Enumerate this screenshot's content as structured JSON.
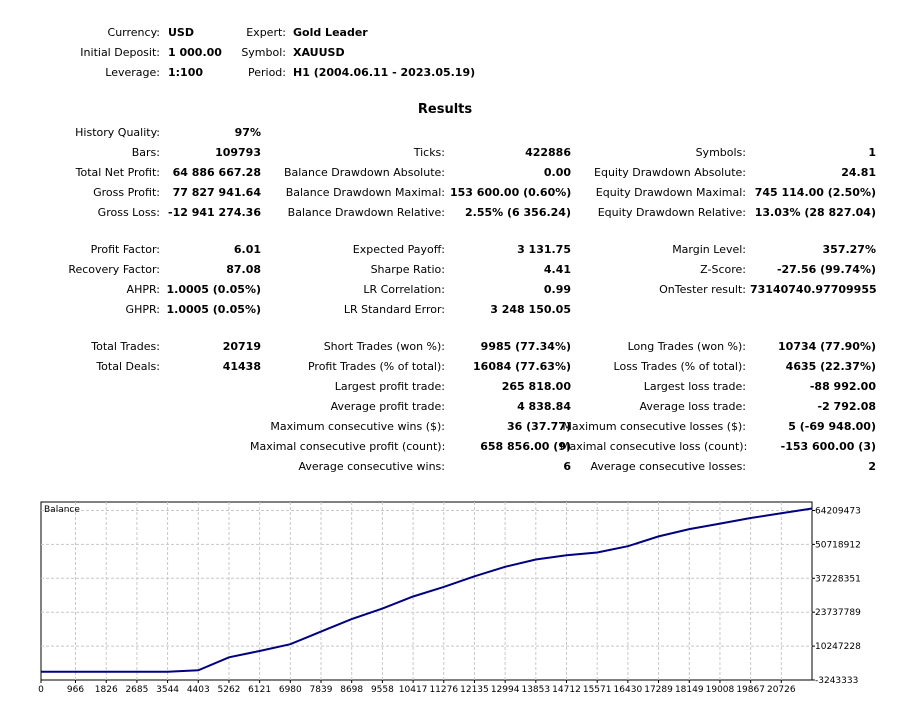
{
  "header": [
    {
      "name": "currency",
      "label": "Currency:",
      "value": "USD"
    },
    {
      "name": "initial-deposit",
      "label": "Initial Deposit:",
      "value": "1 000.00"
    },
    {
      "name": "leverage",
      "label": "Leverage:",
      "value": "1:100"
    },
    {
      "name": "expert",
      "label": "Expert:",
      "value": "Gold Leader"
    },
    {
      "name": "symbol",
      "label": "Symbol:",
      "value": "XAUUSD"
    },
    {
      "name": "period",
      "label": "Period:",
      "value": "H1 (2004.06.11 - 2023.05.19)"
    }
  ],
  "results_title": "Results",
  "col1": [
    {
      "name": "history-quality",
      "label": "History Quality:",
      "value": "97%"
    },
    {
      "name": "bars",
      "label": "Bars:",
      "value": "109793"
    },
    {
      "name": "total-net-profit",
      "label": "Total Net Profit:",
      "value": "64 886 667.28"
    },
    {
      "name": "gross-profit",
      "label": "Gross Profit:",
      "value": "77 827 941.64"
    },
    {
      "name": "gross-loss",
      "label": "Gross Loss:",
      "value": "-12 941 274.36"
    },
    {
      "name": "profit-factor",
      "label": "Profit Factor:",
      "value": "6.01"
    },
    {
      "name": "recovery-factor",
      "label": "Recovery Factor:",
      "value": "87.08"
    },
    {
      "name": "ahpr",
      "label": "AHPR:",
      "value": "1.0005 (0.05%)"
    },
    {
      "name": "ghpr",
      "label": "GHPR:",
      "value": "1.0005 (0.05%)"
    },
    {
      "name": "total-trades",
      "label": "Total Trades:",
      "value": "20719"
    },
    {
      "name": "total-deals",
      "label": "Total Deals:",
      "value": "41438"
    }
  ],
  "col2": [
    {
      "name": "ticks",
      "label": "Ticks:",
      "value": "422886"
    },
    {
      "name": "balance-drawdown-absolute",
      "label": "Balance Drawdown Absolute:",
      "value": "0.00"
    },
    {
      "name": "balance-drawdown-maximal",
      "label": "Balance Drawdown Maximal:",
      "value": "153 600.00 (0.60%)"
    },
    {
      "name": "balance-drawdown-relative",
      "label": "Balance Drawdown Relative:",
      "value": "2.55% (6 356.24)"
    },
    {
      "name": "expected-payoff",
      "label": "Expected Payoff:",
      "value": "3 131.75"
    },
    {
      "name": "sharpe-ratio",
      "label": "Sharpe Ratio:",
      "value": "4.41"
    },
    {
      "name": "lr-correlation",
      "label": "LR Correlation:",
      "value": "0.99"
    },
    {
      "name": "lr-standard-error",
      "label": "LR Standard Error:",
      "value": "3 248 150.05"
    },
    {
      "name": "short-trades",
      "label": "Short Trades (won %):",
      "value": "9985 (77.34%)"
    },
    {
      "name": "profit-trades",
      "label": "Profit Trades (% of total):",
      "value": "16084 (77.63%)"
    },
    {
      "name": "largest-profit-trade",
      "label": "Largest profit trade:",
      "value": "265 818.00"
    },
    {
      "name": "average-profit-trade",
      "label": "Average profit trade:",
      "value": "4 838.84"
    },
    {
      "name": "max-consecutive-wins",
      "label": "Maximum consecutive wins ($):",
      "value": "36 (37.77)"
    },
    {
      "name": "maximal-consecutive-profit",
      "label": "Maximal consecutive profit (count):",
      "value": "658 856.00 (9)"
    },
    {
      "name": "average-consecutive-wins",
      "label": "Average consecutive wins:",
      "value": "6"
    }
  ],
  "col3": [
    {
      "name": "symbols",
      "label": "Symbols:",
      "value": "1"
    },
    {
      "name": "equity-drawdown-absolute",
      "label": "Equity Drawdown Absolute:",
      "value": "24.81"
    },
    {
      "name": "equity-drawdown-maximal",
      "label": "Equity Drawdown Maximal:",
      "value": "745 114.00 (2.50%)"
    },
    {
      "name": "equity-drawdown-relative",
      "label": "Equity Drawdown Relative:",
      "value": "13.03% (28 827.04)"
    },
    {
      "name": "margin-level",
      "label": "Margin Level:",
      "value": "357.27%"
    },
    {
      "name": "z-score",
      "label": "Z-Score:",
      "value": "-27.56 (99.74%)"
    },
    {
      "name": "ontester-result",
      "label": "OnTester result:",
      "value": "73140740.97709955"
    },
    {
      "name": "long-trades",
      "label": "Long Trades (won %):",
      "value": "10734 (77.90%)"
    },
    {
      "name": "loss-trades",
      "label": "Loss Trades (% of total):",
      "value": "4635 (22.37%)"
    },
    {
      "name": "largest-loss-trade",
      "label": "Largest loss trade:",
      "value": "-88 992.00"
    },
    {
      "name": "average-loss-trade",
      "label": "Average loss trade:",
      "value": "-2 792.08"
    },
    {
      "name": "max-consecutive-losses",
      "label": "Maximum consecutive losses ($):",
      "value": "5 (-69 948.00)"
    },
    {
      "name": "maximal-consecutive-loss",
      "label": "Maximal consecutive loss (count):",
      "value": "-153 600.00 (3)"
    },
    {
      "name": "average-consecutive-losses",
      "label": "Average consecutive losses:",
      "value": "2"
    }
  ],
  "chart_data": {
    "type": "line",
    "title": "Balance",
    "line_color": "#000080",
    "grid": true,
    "xlim": [
      0,
      21585
    ],
    "ylim": [
      -3243333,
      67581000
    ],
    "x_ticks": [
      "0",
      "966",
      "1826",
      "2685",
      "3544",
      "4403",
      "5262",
      "6121",
      "6980",
      "7839",
      "8698",
      "9558",
      "10417",
      "11276",
      "12135",
      "12994",
      "13853",
      "14712",
      "15571",
      "16430",
      "17289",
      "18149",
      "19008",
      "19867",
      "20726"
    ],
    "y_ticks": [
      "64209473",
      "50718912",
      "37228351",
      "23737789",
      "10247228",
      "-3243333"
    ],
    "series": [
      {
        "x": [
          0,
          966,
          1826,
          2685,
          3544,
          4403,
          5262,
          6121,
          6980,
          7839,
          8698,
          9558,
          10417,
          11276,
          12135,
          12994,
          13853,
          14712,
          15571,
          16430,
          17289,
          18149,
          19008,
          19867,
          20726,
          21585
        ],
        "y": [
          1000,
          1000,
          1000,
          1000,
          1000,
          600000,
          5800000,
          8300000,
          11000000,
          16000000,
          21000000,
          25200000,
          30000000,
          33800000,
          38000000,
          41800000,
          44700000,
          46400000,
          47500000,
          50000000,
          53900000,
          56800000,
          59000000,
          61200000,
          63100000,
          65000000
        ]
      }
    ]
  }
}
